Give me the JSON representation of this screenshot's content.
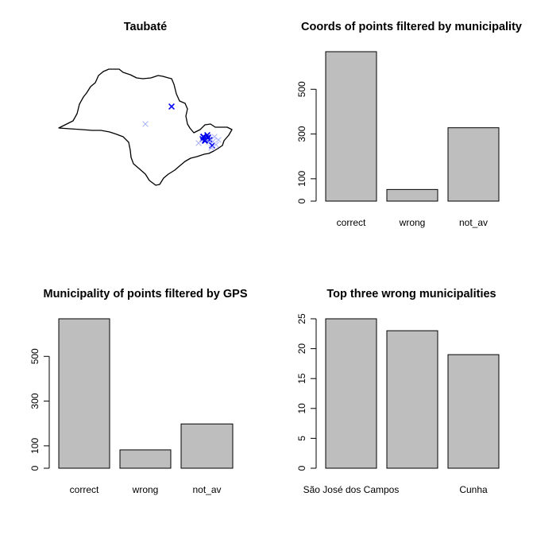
{
  "colors": {
    "bar_fill": "#bebebe",
    "point_strong": "#0000ee",
    "point_faint": "#aab2ff",
    "outline": "#000000"
  },
  "map_panel": {
    "title": "Taubaté"
  },
  "chart_data": [
    {
      "type": "scatter",
      "title": "Taubaté",
      "marker": "x",
      "points": "state outline map of São Paulo with blue x markers (coordinates not printed)"
    },
    {
      "type": "bar",
      "title": "Coords of points filtered by municipality",
      "categories": [
        "correct",
        "wrong",
        "not_av"
      ],
      "values": [
        668,
        52,
        328
      ],
      "yticks": [
        0,
        100,
        300,
        500
      ],
      "ylim": [
        0,
        668
      ]
    },
    {
      "type": "bar",
      "title": "Municipality of points filtered by GPS",
      "categories": [
        "correct",
        "wrong",
        "not_av"
      ],
      "values": [
        668,
        82,
        198
      ],
      "yticks": [
        0,
        100,
        300,
        500
      ],
      "ylim": [
        0,
        668
      ]
    },
    {
      "type": "bar",
      "title": "Top three wrong municipalities",
      "categories": [
        "São José dos Campos",
        "",
        "Cunha"
      ],
      "values": [
        25,
        23,
        19
      ],
      "yticks": [
        0,
        5,
        10,
        15,
        20,
        25
      ],
      "ylim": [
        0,
        25
      ]
    }
  ]
}
